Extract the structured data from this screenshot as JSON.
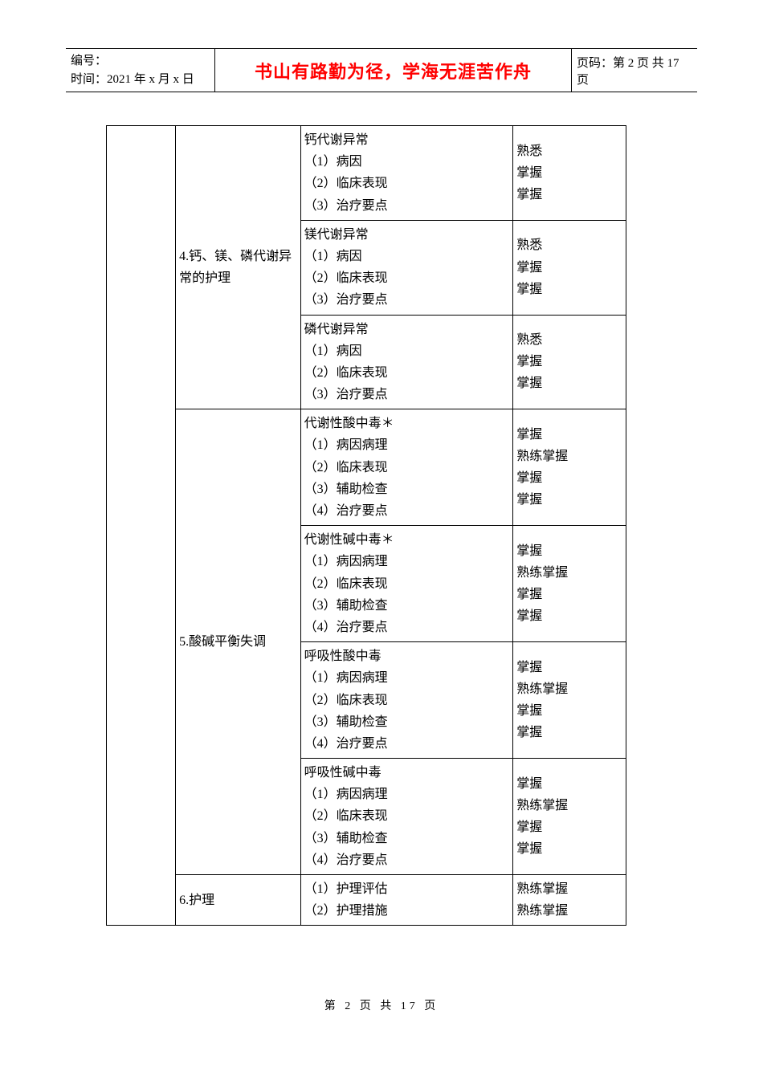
{
  "header": {
    "doc_id_label": "编号：",
    "date_label": "时间：2021 年 x 月 x 日",
    "motto": "书山有路勤为径，学海无涯苦作舟",
    "page_label": "页码：第 2 页 共 17 页"
  },
  "footer": "第 2 页 共 17 页",
  "table": {
    "sections": [
      {
        "topic": "4.钙、镁、磷代谢异常的护理",
        "rows": [
          {
            "content": "钙代谢异常\n（1）病因\n（2）临床表现\n（3）治疗要点",
            "req": "熟悉\n掌握\n掌握"
          },
          {
            "content": "镁代谢异常\n（1）病因\n（2）临床表现\n（3）治疗要点",
            "req": "熟悉\n掌握\n掌握"
          },
          {
            "content": "磷代谢异常\n（1）病因\n（2）临床表现\n（3）治疗要点",
            "req": "熟悉\n掌握\n掌握"
          }
        ]
      },
      {
        "topic": "5.酸碱平衡失调",
        "rows": [
          {
            "content": "代谢性酸中毒＊\n（1）病因病理\n（2）临床表现\n（3）辅助检查\n（4）治疗要点",
            "req": "掌握\n熟练掌握\n掌握\n掌握"
          },
          {
            "content": "代谢性碱中毒＊\n（1）病因病理\n（2）临床表现\n（3）辅助检查\n（4）治疗要点",
            "req": "掌握\n熟练掌握\n掌握\n掌握"
          },
          {
            "content": "呼吸性酸中毒\n（1）病因病理\n（2）临床表现\n（3）辅助检查\n（4）治疗要点",
            "req": "掌握\n熟练掌握\n掌握\n掌握"
          },
          {
            "content": "呼吸性碱中毒\n（1）病因病理\n（2）临床表现\n（3）辅助检查\n（4）治疗要点",
            "req": "掌握\n熟练掌握\n掌握\n掌握"
          }
        ]
      },
      {
        "topic": "6.护理",
        "rows": [
          {
            "content": "（1）护理评估\n（2）护理措施",
            "req": "熟练掌握\n熟练掌握"
          }
        ]
      }
    ]
  }
}
